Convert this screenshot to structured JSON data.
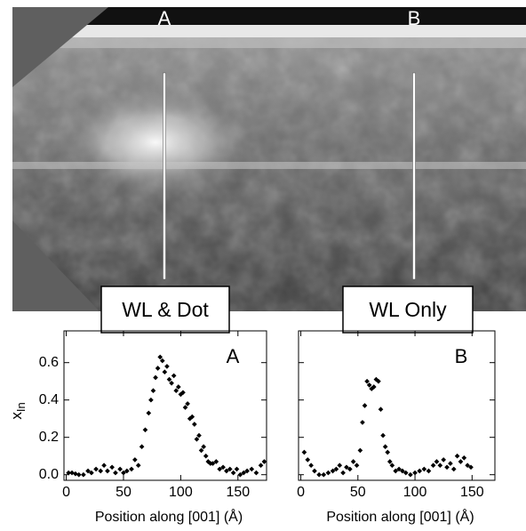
{
  "image": {
    "markers": [
      "A",
      "B"
    ],
    "captions": [
      "WL & Dot",
      "WL Only"
    ]
  },
  "chart_data": [
    {
      "type": "scatter",
      "panel_label": "A",
      "x_label": "Position along [001] (Å)",
      "y_label": "x",
      "y_label_sub": "In",
      "color": "#000000",
      "xlim": [
        -2,
        175
      ],
      "ylim": [
        -0.03,
        0.77
      ],
      "xticks": [
        0,
        50,
        100,
        150
      ],
      "yticks": [
        {
          "value": 0,
          "label": "0.0"
        },
        0.2,
        0.4,
        0.6
      ],
      "x": [
        2,
        5,
        8,
        11,
        15,
        19,
        22,
        26,
        30,
        33,
        36,
        40,
        43,
        47,
        50,
        53,
        57,
        60,
        63,
        66,
        69,
        72,
        74,
        76,
        78,
        80,
        82,
        84,
        86,
        88,
        90,
        92,
        94,
        96,
        98,
        100,
        102,
        104,
        106,
        108,
        110,
        112,
        114,
        116,
        118,
        120,
        122,
        124,
        126,
        128,
        131,
        134,
        137,
        140,
        143,
        146,
        149,
        152,
        155,
        158,
        162,
        166,
        170,
        173
      ],
      "values": [
        0.01,
        0.01,
        0.005,
        0,
        0,
        0.02,
        0.01,
        0.03,
        0.02,
        0.05,
        0.02,
        0.04,
        0.01,
        0.03,
        0.01,
        0.02,
        0.03,
        0.08,
        0.05,
        0.15,
        0.24,
        0.33,
        0.4,
        0.45,
        0.52,
        0.57,
        0.63,
        0.61,
        0.55,
        0.58,
        0.51,
        0.49,
        0.53,
        0.45,
        0.47,
        0.43,
        0.44,
        0.36,
        0.38,
        0.3,
        0.31,
        0.27,
        0.19,
        0.21,
        0.13,
        0.15,
        0.1,
        0.07,
        0.06,
        0.06,
        0.07,
        0.03,
        0.04,
        0.02,
        0.03,
        0.01,
        0.03,
        0,
        0.01,
        0.02,
        0.03,
        0.01,
        0.05,
        0.07
      ]
    },
    {
      "type": "scatter",
      "panel_label": "B",
      "x_label": "Position along [001] (Å)",
      "color": "#000000",
      "xlim": [
        -2,
        170
      ],
      "ylim": [
        -0.03,
        0.77
      ],
      "xticks": [
        0,
        50,
        100,
        150
      ],
      "yticks": [
        0,
        0.2,
        0.4,
        0.6
      ],
      "x": [
        3,
        6,
        9,
        12,
        16,
        20,
        24,
        28,
        31,
        34,
        37,
        40,
        43,
        46,
        49,
        52,
        54,
        56,
        58,
        60,
        62,
        64,
        66,
        68,
        70,
        72,
        74,
        76,
        78,
        80,
        83,
        86,
        89,
        92,
        96,
        100,
        104,
        108,
        112,
        116,
        119,
        122,
        125,
        128,
        131,
        134,
        137,
        140,
        143,
        146,
        149
      ],
      "values": [
        0.12,
        0.08,
        0.05,
        0.02,
        0,
        0,
        0.01,
        0.02,
        0.03,
        0.05,
        0.01,
        0.04,
        0.03,
        0.07,
        0.05,
        0.13,
        0.28,
        0.37,
        0.5,
        0.48,
        0.46,
        0.47,
        0.51,
        0.5,
        0.35,
        0.21,
        0.15,
        0.12,
        0.07,
        0.05,
        0.02,
        0.03,
        0.02,
        0.01,
        0,
        0.01,
        0.02,
        0.03,
        0.02,
        0.05,
        0.07,
        0.05,
        0.08,
        0.04,
        0.06,
        0.03,
        0.1,
        0.07,
        0.09,
        0.05,
        0.04
      ]
    }
  ]
}
